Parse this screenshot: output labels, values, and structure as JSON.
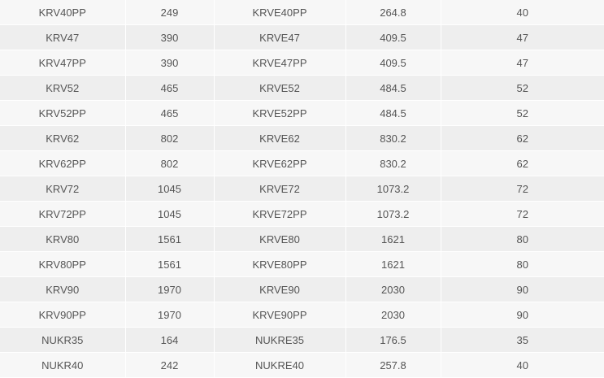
{
  "rows": [
    [
      "KRV40PP",
      "249",
      "KRVE40PP",
      "264.8",
      "40"
    ],
    [
      "KRV47",
      "390",
      "KRVE47",
      "409.5",
      "47"
    ],
    [
      "KRV47PP",
      "390",
      "KRVE47PP",
      "409.5",
      "47"
    ],
    [
      "KRV52",
      "465",
      "KRVE52",
      "484.5",
      "52"
    ],
    [
      "KRV52PP",
      "465",
      "KRVE52PP",
      "484.5",
      "52"
    ],
    [
      "KRV62",
      "802",
      "KRVE62",
      "830.2",
      "62"
    ],
    [
      "KRV62PP",
      "802",
      "KRVE62PP",
      "830.2",
      "62"
    ],
    [
      "KRV72",
      "1045",
      "KRVE72",
      "1073.2",
      "72"
    ],
    [
      "KRV72PP",
      "1045",
      "KRVE72PP",
      "1073.2",
      "72"
    ],
    [
      "KRV80",
      "1561",
      "KRVE80",
      "1621",
      "80"
    ],
    [
      "KRV80PP",
      "1561",
      "KRVE80PP",
      "1621",
      "80"
    ],
    [
      "KRV90",
      "1970",
      "KRVE90",
      "2030",
      "90"
    ],
    [
      "KRV90PP",
      "1970",
      "KRVE90PP",
      "2030",
      "90"
    ],
    [
      "NUKR35",
      "164",
      "NUKRE35",
      "176.5",
      "35"
    ],
    [
      "NUKR40",
      "242",
      "NUKRE40",
      "257.8",
      "40"
    ]
  ]
}
